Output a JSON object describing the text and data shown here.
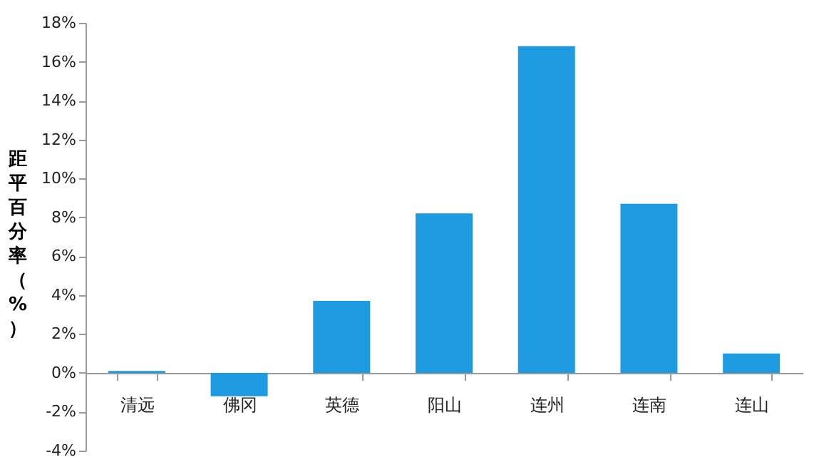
{
  "chart_data": {
    "type": "bar",
    "ylabel": "距平百分率（%）",
    "categories": [
      "清远",
      "佛冈",
      "英德",
      "阳山",
      "连州",
      "连南",
      "连山"
    ],
    "values": [
      0.1,
      -1.2,
      3.7,
      8.2,
      16.8,
      8.7,
      1.0
    ],
    "color": "#1e9ae0",
    "ylim": [
      -4,
      18
    ],
    "yticks": [
      {
        "value": -4,
        "label": "-4%"
      },
      {
        "value": -2,
        "label": "-2%"
      },
      {
        "value": 0,
        "label": "0%"
      },
      {
        "value": 2,
        "label": "2%"
      },
      {
        "value": 4,
        "label": "4%"
      },
      {
        "value": 6,
        "label": "6%"
      },
      {
        "value": 8,
        "label": "8%"
      },
      {
        "value": 10,
        "label": "10%"
      },
      {
        "value": 12,
        "label": "12%"
      },
      {
        "value": 14,
        "label": "14%"
      },
      {
        "value": 16,
        "label": "16%"
      },
      {
        "value": 18,
        "label": "18%"
      }
    ],
    "grid": false
  }
}
